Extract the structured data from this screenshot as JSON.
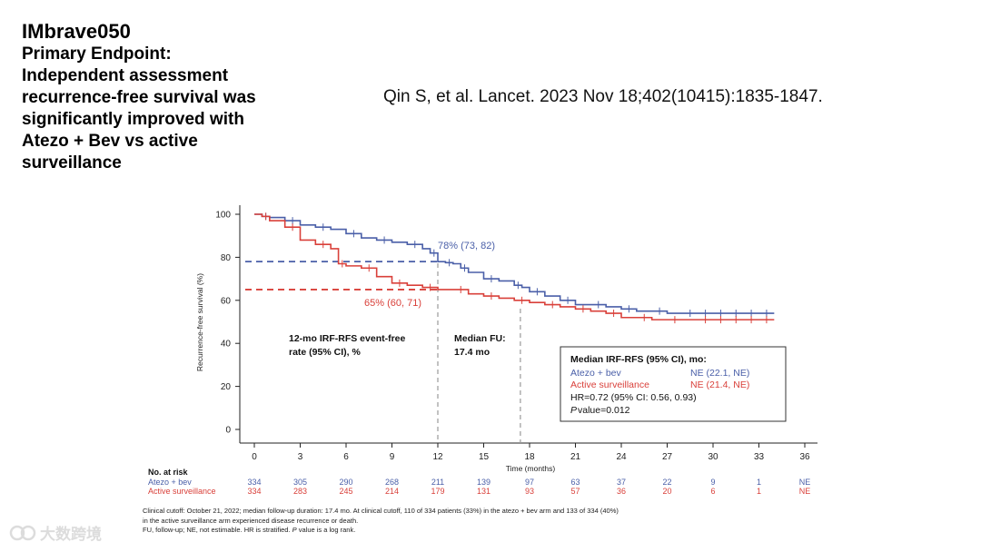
{
  "slide": {
    "title": "IMbrave050",
    "subtitle": "Primary Endpoint:\nIndependent assessment\nrecurrence-free survival was\nsignificantly improved with\nAtezo + Bev vs active\nsurveillance",
    "citation": "Qin S, et al. Lancet. 2023 Nov 18;402(10415):1835-1847.",
    "watermark": "大数跨境"
  },
  "chart_data": {
    "type": "line",
    "title": "",
    "xlabel": "Time (months)",
    "ylabel": "Recurrence-free survival (%)",
    "xlim": [
      0,
      36
    ],
    "ylim": [
      0,
      100
    ],
    "xticks": [
      0,
      3,
      6,
      9,
      12,
      15,
      18,
      21,
      24,
      27,
      30,
      33,
      36
    ],
    "yticks": [
      0,
      20,
      40,
      60,
      80,
      100
    ],
    "series": [
      {
        "name": "Atezo + bev",
        "color": "#4a5fa8",
        "x": [
          0,
          0.5,
          1,
          2,
          3,
          4,
          5,
          6,
          7,
          8,
          9,
          10,
          11,
          11.5,
          12,
          12.5,
          13,
          13.5,
          14,
          15,
          16,
          17,
          17.5,
          18,
          19,
          20,
          21,
          22,
          23,
          24,
          25,
          26,
          27,
          28,
          29,
          30,
          31,
          32,
          33,
          34
        ],
        "y": [
          100,
          99,
          98.5,
          97,
          95,
          94,
          93,
          91,
          89,
          88,
          87,
          86,
          84,
          82,
          78,
          77.5,
          77,
          75,
          73,
          70,
          69,
          67,
          66,
          64,
          62,
          60,
          58,
          58,
          57,
          56,
          55,
          55,
          54,
          54,
          54,
          54,
          54,
          54,
          54,
          54
        ]
      },
      {
        "name": "Active surveillance",
        "color": "#d9403a",
        "x": [
          0,
          0.5,
          1,
          2,
          3,
          4,
          5,
          5.5,
          6,
          7,
          8,
          9,
          10,
          11,
          12,
          13,
          14,
          15,
          16,
          17,
          18,
          19,
          20,
          21,
          22,
          23,
          24,
          25,
          26,
          27,
          28,
          29,
          30,
          31,
          32,
          33,
          34
        ],
        "y": [
          100,
          99,
          97,
          94,
          88,
          86,
          84,
          77,
          76,
          75,
          71,
          68,
          67,
          66,
          65,
          65,
          63,
          62,
          61,
          60,
          59,
          58,
          57,
          56,
          55,
          54,
          52,
          52,
          51,
          51,
          51,
          51,
          51,
          51,
          51,
          51,
          51
        ]
      }
    ],
    "annotations": {
      "atezo_12mo": "78% (73, 82)",
      "active_12mo": "65% (60, 71)",
      "atezo_12mo_value": 78,
      "active_12mo_value": 65,
      "event_free_label": "12-mo IRF-RFS event-free\nrate (95% CI), %",
      "median_fu_label": "Median FU:\n17.4 mo",
      "median_fu_value": 17.4,
      "landmark_month": 12
    },
    "legend_box": {
      "heading": "Median IRF-RFS (95% CI), mo:",
      "rows": [
        {
          "name": "Atezo + bev",
          "value": "NE (22.1, NE)",
          "color": "#4a5fa8"
        },
        {
          "name": "Active surveillance",
          "value": "NE (21.4, NE)",
          "color": "#d9403a"
        }
      ],
      "hr": "HR=0.72 (95% CI: 0.56, 0.93)",
      "p_italic": "P",
      "p_rest": " value=0.012",
      "placement": "bottom-right"
    },
    "risk_table": {
      "header": "No. at risk",
      "rows": [
        {
          "name": "Atezo + bev",
          "color": "#4a5fa8",
          "values": [
            "334",
            "305",
            "290",
            "268",
            "211",
            "139",
            "97",
            "63",
            "37",
            "22",
            "9",
            "1",
            "NE"
          ]
        },
        {
          "name": "Active surveillance",
          "color": "#d9403a",
          "values": [
            "334",
            "283",
            "245",
            "214",
            "179",
            "131",
            "93",
            "57",
            "36",
            "20",
            "6",
            "1",
            "NE"
          ]
        }
      ]
    }
  },
  "footnote": {
    "line1": "Clinical cutoff: October 21, 2022; median follow-up duration: 17.4 mo. At clinical cutoff, 110 of 334 patients (33%) in the atezo + bev arm and 133 of 334 (40%)",
    "line2": "in the active surveillance arm experienced disease recurrence or death.",
    "line3a": "FU, follow-up; NE, not estimable. HR is stratified. ",
    "line3_italic": "P",
    "line3b": " value is a log rank."
  }
}
